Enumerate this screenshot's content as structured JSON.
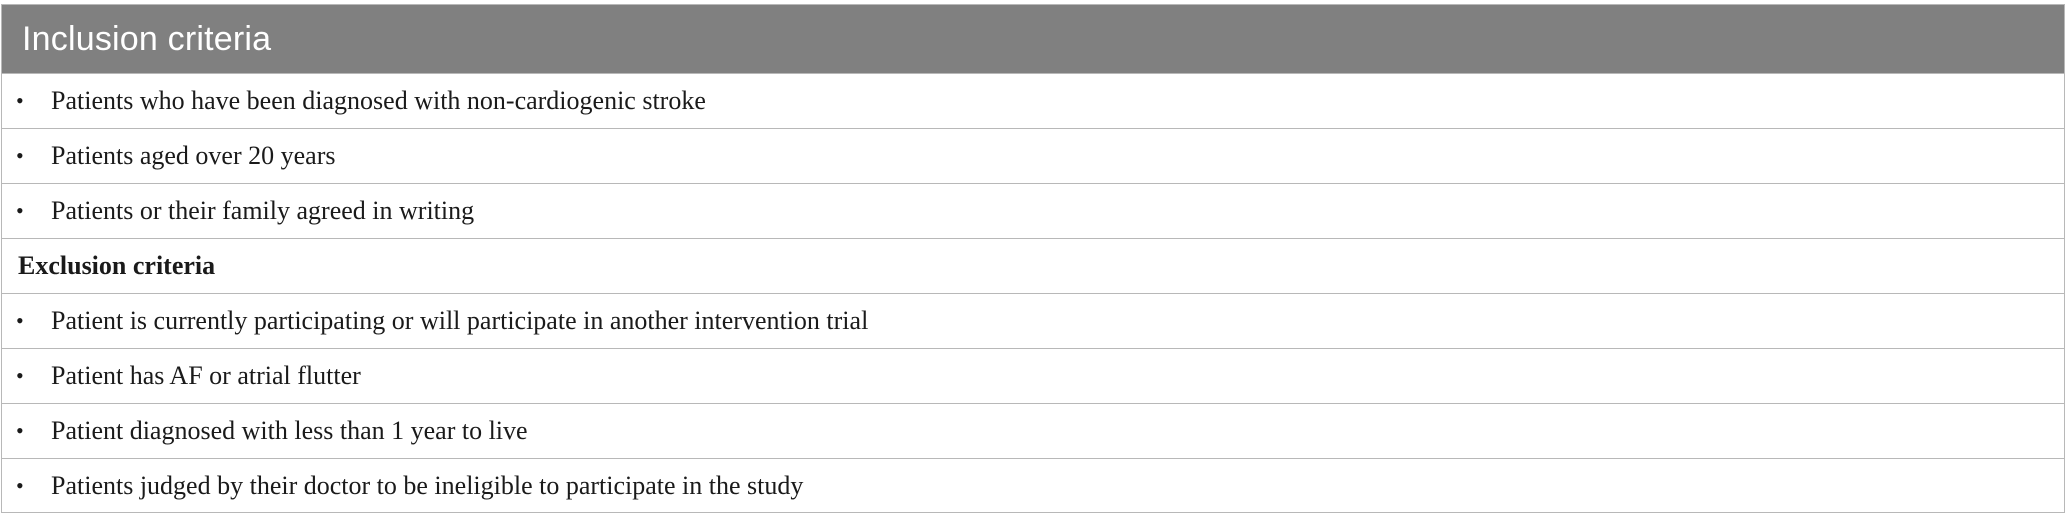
{
  "table": {
    "header_title": "Inclusion criteria",
    "inclusion_items": [
      "Patients who have been diagnosed with non-cardiogenic stroke",
      "Patients aged over 20 years",
      "Patients or their family agreed in writing"
    ],
    "exclusion_heading": "Exclusion criteria",
    "exclusion_items": [
      "Patient is currently participating or will participate in another intervention trial",
      "Patient has AF or atrial flutter",
      "Patient diagnosed with less than 1 year to live",
      "Patients judged by their doctor to be ineligible to participate in the study"
    ],
    "bullet_glyph": "•"
  }
}
